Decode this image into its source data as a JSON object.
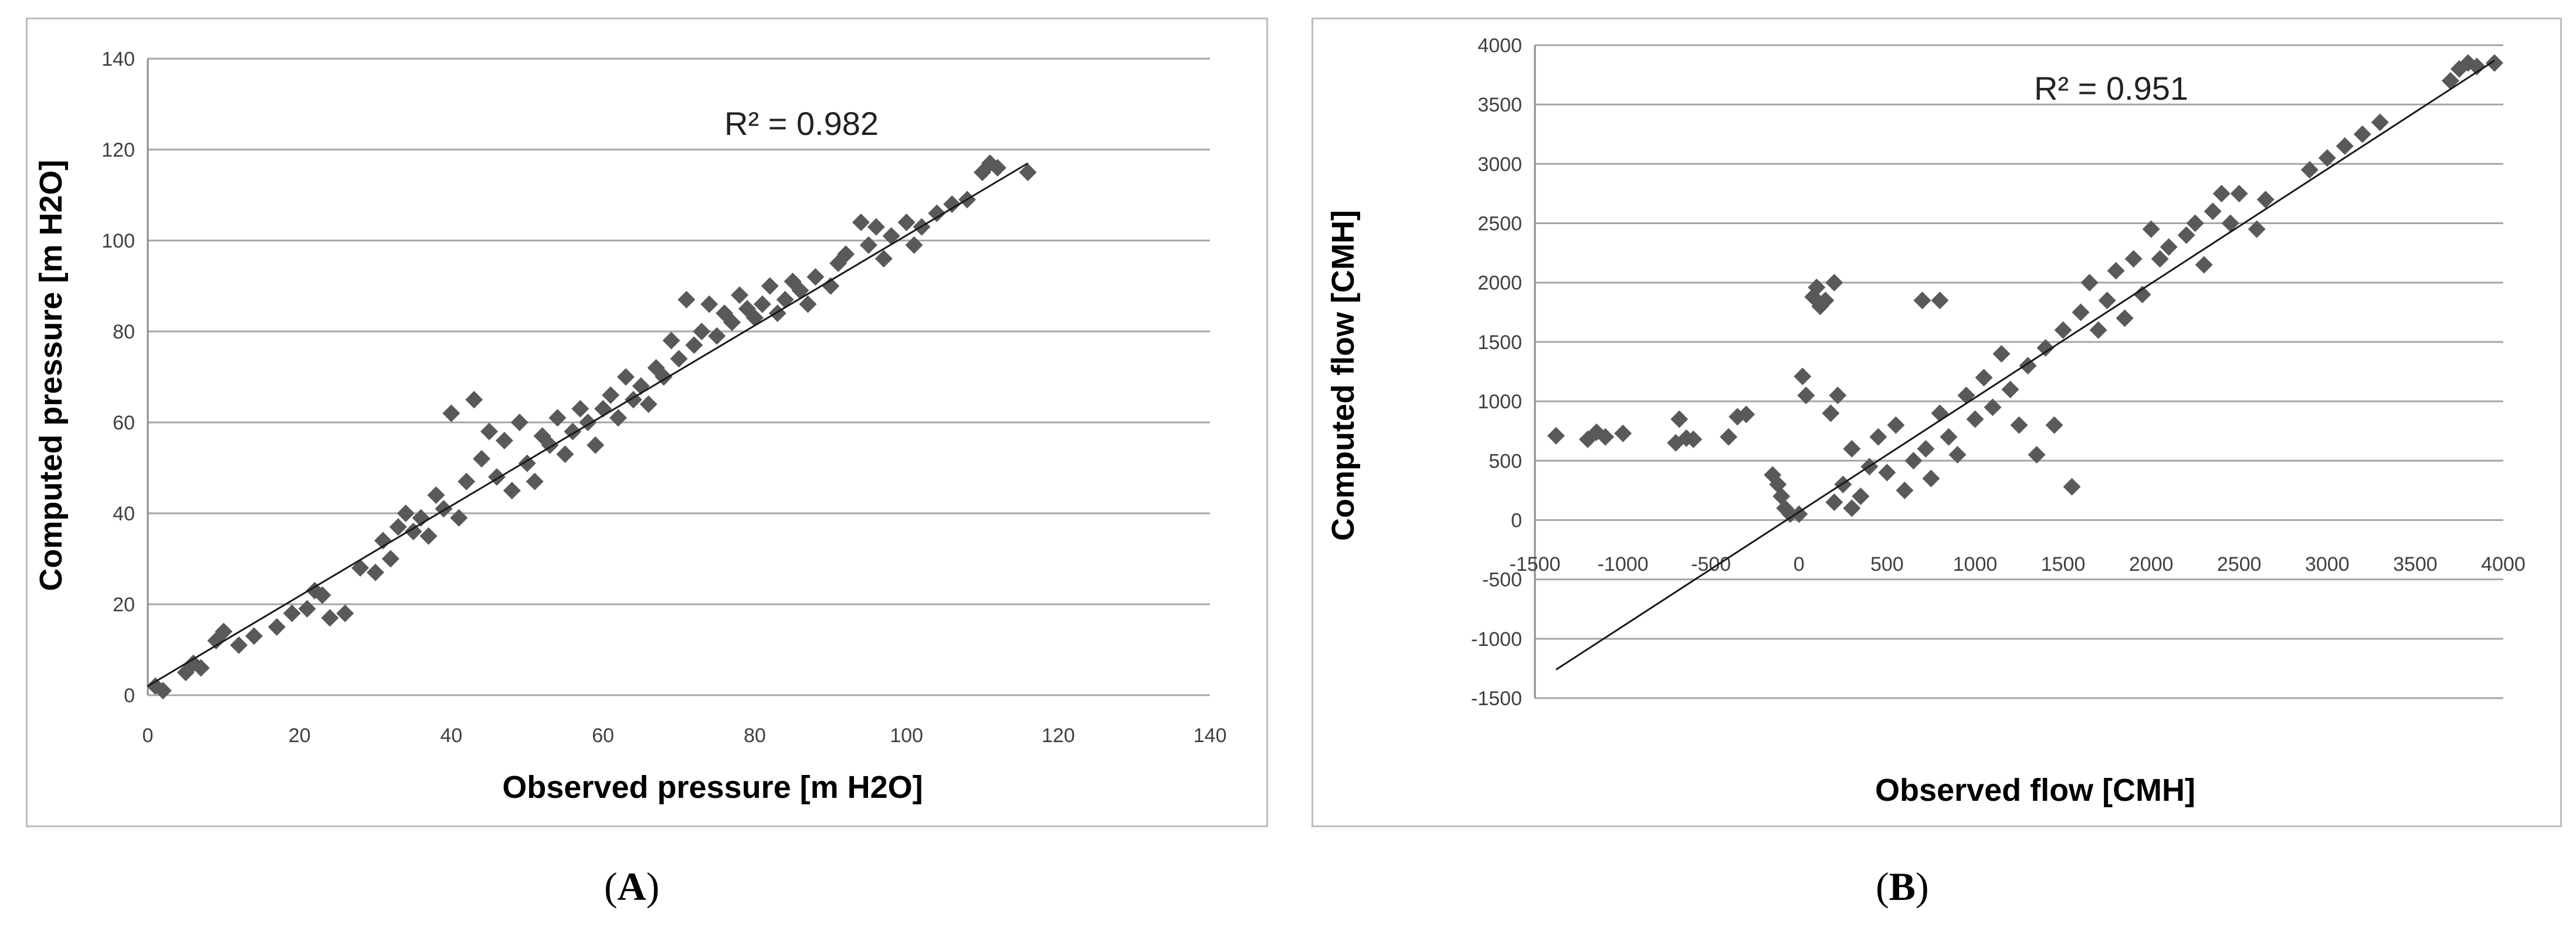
{
  "chart_data": [
    {
      "type": "scatter",
      "panel": "A",
      "xlabel": "Observed pressure [m H2O]",
      "ylabel": "Computed pressure [m H2O]",
      "xlim": [
        0,
        140
      ],
      "ylim": [
        0,
        140
      ],
      "xticks": [
        "0",
        "20",
        "40",
        "60",
        "80",
        "100",
        "120",
        "140"
      ],
      "yticks": [
        "0",
        "20",
        "40",
        "60",
        "80",
        "100",
        "120",
        "140"
      ],
      "grid": true,
      "annotation": "R² = 0.982",
      "marker_color": "#595959",
      "trendline": [
        [
          0,
          2
        ],
        [
          116,
          117
        ]
      ],
      "points": [
        [
          1,
          2
        ],
        [
          2,
          1
        ],
        [
          5,
          5
        ],
        [
          6,
          7
        ],
        [
          7,
          6
        ],
        [
          9,
          12
        ],
        [
          10,
          14
        ],
        [
          12,
          11
        ],
        [
          14,
          13
        ],
        [
          17,
          15
        ],
        [
          19,
          18
        ],
        [
          21,
          19
        ],
        [
          22,
          23
        ],
        [
          23,
          22
        ],
        [
          24,
          17
        ],
        [
          26,
          18
        ],
        [
          28,
          28
        ],
        [
          30,
          27
        ],
        [
          31,
          34
        ],
        [
          32,
          30
        ],
        [
          33,
          37
        ],
        [
          34,
          40
        ],
        [
          35,
          36
        ],
        [
          36,
          39
        ],
        [
          37,
          35
        ],
        [
          38,
          44
        ],
        [
          39,
          41
        ],
        [
          40,
          62
        ],
        [
          41,
          39
        ],
        [
          42,
          47
        ],
        [
          43,
          65
        ],
        [
          44,
          52
        ],
        [
          45,
          58
        ],
        [
          46,
          48
        ],
        [
          47,
          56
        ],
        [
          48,
          45
        ],
        [
          49,
          60
        ],
        [
          50,
          51
        ],
        [
          51,
          47
        ],
        [
          52,
          57
        ],
        [
          53,
          55
        ],
        [
          54,
          61
        ],
        [
          55,
          53
        ],
        [
          56,
          58
        ],
        [
          57,
          63
        ],
        [
          58,
          60
        ],
        [
          59,
          55
        ],
        [
          60,
          63
        ],
        [
          61,
          66
        ],
        [
          62,
          61
        ],
        [
          63,
          70
        ],
        [
          64,
          65
        ],
        [
          65,
          68
        ],
        [
          66,
          64
        ],
        [
          67,
          72
        ],
        [
          68,
          70
        ],
        [
          69,
          78
        ],
        [
          70,
          74
        ],
        [
          71,
          87
        ],
        [
          72,
          77
        ],
        [
          73,
          80
        ],
        [
          74,
          86
        ],
        [
          75,
          79
        ],
        [
          76,
          84
        ],
        [
          77,
          82
        ],
        [
          78,
          88
        ],
        [
          79,
          85
        ],
        [
          80,
          83
        ],
        [
          81,
          86
        ],
        [
          82,
          90
        ],
        [
          83,
          84
        ],
        [
          84,
          87
        ],
        [
          85,
          91
        ],
        [
          86,
          89
        ],
        [
          87,
          86
        ],
        [
          88,
          92
        ],
        [
          90,
          90
        ],
        [
          91,
          95
        ],
        [
          92,
          97
        ],
        [
          94,
          104
        ],
        [
          95,
          99
        ],
        [
          96,
          103
        ],
        [
          97,
          96
        ],
        [
          98,
          101
        ],
        [
          100,
          104
        ],
        [
          101,
          99
        ],
        [
          102,
          103
        ],
        [
          104,
          106
        ],
        [
          106,
          108
        ],
        [
          108,
          109
        ],
        [
          110,
          115
        ],
        [
          111,
          117
        ],
        [
          112,
          116
        ],
        [
          116,
          115
        ]
      ]
    },
    {
      "type": "scatter",
      "panel": "B",
      "xlabel": "Observed flow [CMH]",
      "ylabel": "Computed flow [CMH]",
      "xlim": [
        -1500,
        4000
      ],
      "ylim": [
        -1500,
        4000
      ],
      "xticks": [
        "-1500",
        "-1000",
        "-500",
        "0",
        "500",
        "1000",
        "1500",
        "2000",
        "2500",
        "3000",
        "3500",
        "4000"
      ],
      "yticks": [
        "-1500",
        "-1000",
        "-500",
        "0",
        "500",
        "1000",
        "1500",
        "2000",
        "2500",
        "3000",
        "3500",
        "4000"
      ],
      "grid": true,
      "annotation": "R² = 0.951",
      "marker_color": "#595959",
      "trendline": [
        [
          -1380,
          -1260
        ],
        [
          3950,
          3870
        ]
      ],
      "points": [
        [
          -1380,
          710
        ],
        [
          -1200,
          680
        ],
        [
          -1150,
          740
        ],
        [
          -1100,
          700
        ],
        [
          -1000,
          730
        ],
        [
          -700,
          650
        ],
        [
          -680,
          850
        ],
        [
          -640,
          690
        ],
        [
          -600,
          680
        ],
        [
          -400,
          700
        ],
        [
          -350,
          870
        ],
        [
          -300,
          890
        ],
        [
          -150,
          380
        ],
        [
          -120,
          300
        ],
        [
          -100,
          200
        ],
        [
          -80,
          100
        ],
        [
          -50,
          50
        ],
        [
          0,
          50
        ],
        [
          20,
          1210
        ],
        [
          40,
          1050
        ],
        [
          80,
          1880
        ],
        [
          100,
          1960
        ],
        [
          120,
          1800
        ],
        [
          150,
          1850
        ],
        [
          180,
          900
        ],
        [
          200,
          2000
        ],
        [
          200,
          150
        ],
        [
          220,
          1050
        ],
        [
          250,
          300
        ],
        [
          300,
          100
        ],
        [
          300,
          600
        ],
        [
          350,
          200
        ],
        [
          400,
          450
        ],
        [
          450,
          700
        ],
        [
          500,
          400
        ],
        [
          550,
          800
        ],
        [
          600,
          250
        ],
        [
          650,
          500
        ],
        [
          700,
          1850
        ],
        [
          720,
          600
        ],
        [
          750,
          350
        ],
        [
          800,
          1850
        ],
        [
          800,
          900
        ],
        [
          850,
          700
        ],
        [
          900,
          550
        ],
        [
          950,
          1050
        ],
        [
          1000,
          850
        ],
        [
          1050,
          1200
        ],
        [
          1100,
          950
        ],
        [
          1150,
          1400
        ],
        [
          1200,
          1100
        ],
        [
          1250,
          800
        ],
        [
          1300,
          1300
        ],
        [
          1350,
          550
        ],
        [
          1400,
          1450
        ],
        [
          1450,
          800
        ],
        [
          1500,
          1600
        ],
        [
          1550,
          280
        ],
        [
          1600,
          1750
        ],
        [
          1650,
          2000
        ],
        [
          1700,
          1600
        ],
        [
          1750,
          1850
        ],
        [
          1800,
          2100
        ],
        [
          1850,
          1700
        ],
        [
          1900,
          2200
        ],
        [
          1950,
          1900
        ],
        [
          2000,
          2450
        ],
        [
          2050,
          2200
        ],
        [
          2100,
          2300
        ],
        [
          2200,
          2400
        ],
        [
          2250,
          2500
        ],
        [
          2300,
          2150
        ],
        [
          2350,
          2600
        ],
        [
          2400,
          2750
        ],
        [
          2450,
          2500
        ],
        [
          2500,
          2750
        ],
        [
          2600,
          2450
        ],
        [
          2650,
          2700
        ],
        [
          2900,
          2950
        ],
        [
          3000,
          3050
        ],
        [
          3100,
          3150
        ],
        [
          3200,
          3250
        ],
        [
          3300,
          3350
        ],
        [
          3700,
          3700
        ],
        [
          3750,
          3800
        ],
        [
          3800,
          3850
        ],
        [
          3850,
          3820
        ],
        [
          3950,
          3850
        ]
      ]
    }
  ],
  "captions": {
    "a": "A",
    "b": "B"
  }
}
